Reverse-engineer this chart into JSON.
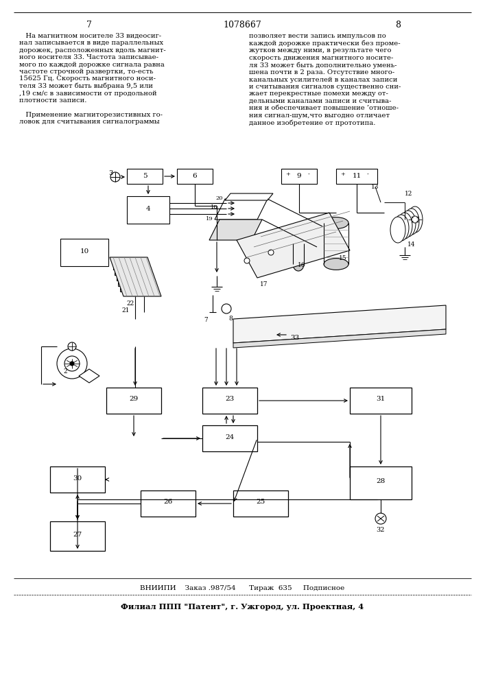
{
  "page_num_left": "7",
  "page_num_center": "1078667",
  "page_num_right": "8",
  "left_text": "   На магнитном носителе 33 видеосиг-\nнал записывается в виде параллельных\nдорожек, расположенных вдоль магнит-\nного носителя 33. Частота записывае-\nмого по каждой дорожке сигнала равна\nчастоте строчной развертки, то-есть\n15625 Гц. Скорость магнитного носи-\nтеля 33 может быть выбрана 9,5 или\n,19 см/с в зависимости от продольной\nплотности записи.\n\n   Применение магниторезистивных го-\nловок для считывания сигналограммы",
  "right_text": "позволяет вести запись импульсов по\nкаждой дорожке практически без проме-\nжутков между ними, в результате чего\nскорость движения магнитного носите-\nля 33 может быть дополнительно умень-\nшена почти в 2 раза. Отсутствие много-\nканальных усилителей в каналах записи\nи считывания сигналов существенно сни-\nжает перекрестные помехи между от-\nдельными каналами записи и считыва-\nния и обеспечивает повышение ’отноше-\nния сигнал-шум,что выгодно отличает\nданное изобретение от прототипа.",
  "footer_line1": "ВНИИПИ    Заказ .987/54      Тираж  635     Подписное",
  "footer_line2": "Филиал ППП \"Патент\", г. Ужгород, ул. Проектная, 4",
  "bg_color": "#ffffff",
  "text_color": "#000000"
}
